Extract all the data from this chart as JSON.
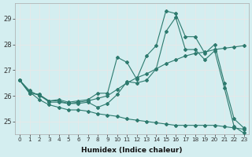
{
  "xlabel": "Humidex (Indice chaleur)",
  "ylabel": "",
  "background_color": "#d4eef0",
  "grid_color": "#f0f0f0",
  "line_color": "#2d7a6e",
  "xlim": [
    -0.5,
    23.5
  ],
  "ylim": [
    24.5,
    29.6
  ],
  "yticks": [
    25,
    26,
    27,
    28,
    29
  ],
  "xticks": [
    0,
    1,
    2,
    3,
    4,
    5,
    6,
    7,
    8,
    9,
    10,
    11,
    12,
    13,
    14,
    15,
    16,
    17,
    18,
    19,
    20,
    21,
    22,
    23
  ],
  "series": [
    [
      26.6,
      26.1,
      26.05,
      25.8,
      25.85,
      25.75,
      25.8,
      25.85,
      26.1,
      26.1,
      27.5,
      27.3,
      26.65,
      27.55,
      27.95,
      29.3,
      29.2,
      28.3,
      28.3,
      27.65,
      28.0,
      26.5,
      25.1,
      24.75
    ],
    [
      26.6,
      26.1,
      26.05,
      25.75,
      25.75,
      25.7,
      25.7,
      25.75,
      25.55,
      25.7,
      26.05,
      26.55,
      26.5,
      26.6,
      27.05,
      28.5,
      29.05,
      27.8,
      27.8,
      27.4,
      27.75,
      26.3,
      24.8,
      24.55
    ],
    [
      26.6,
      26.2,
      26.0,
      25.8,
      25.8,
      25.7,
      25.75,
      25.8,
      25.9,
      26.0,
      26.25,
      26.5,
      26.7,
      26.85,
      27.05,
      27.25,
      27.4,
      27.55,
      27.65,
      27.7,
      27.8,
      27.85,
      27.9,
      27.95
    ],
    [
      26.6,
      26.15,
      25.85,
      25.65,
      25.55,
      25.45,
      25.45,
      25.4,
      25.3,
      25.25,
      25.2,
      25.1,
      25.05,
      25.0,
      24.95,
      24.9,
      24.85,
      24.85,
      24.85,
      24.85,
      24.85,
      24.8,
      24.75,
      24.7
    ]
  ]
}
